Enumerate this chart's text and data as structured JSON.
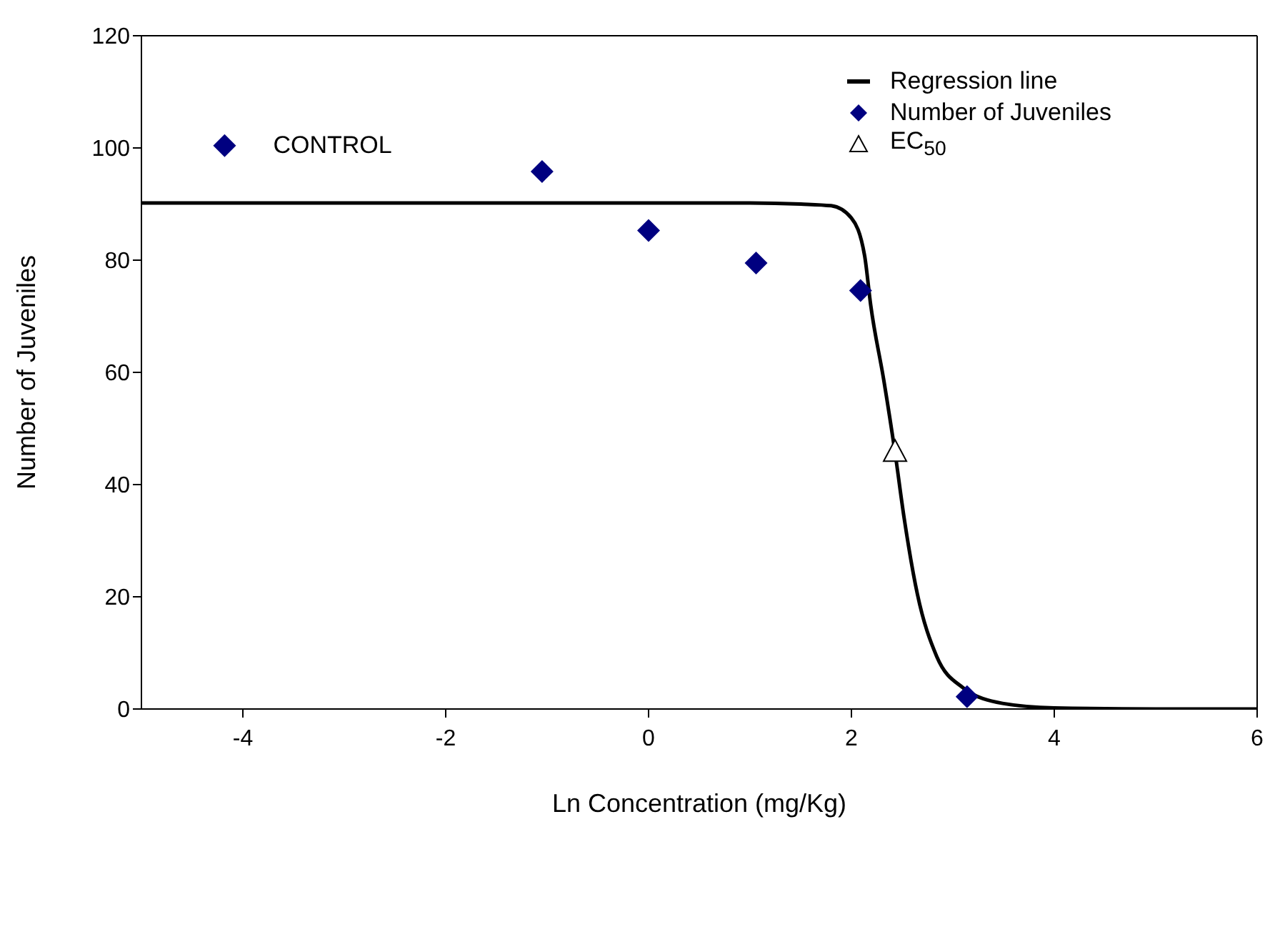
{
  "chart_data": {
    "type": "scatter",
    "xlabel": "Ln Concentration (mg/Kg)",
    "ylabel": "Number of Juveniles",
    "xlim": [
      -5,
      6
    ],
    "xticks": [
      -4,
      -2,
      0,
      2,
      4,
      6
    ],
    "ylim": [
      0,
      120
    ],
    "yticks": [
      0,
      20,
      40,
      60,
      80,
      100,
      120
    ],
    "grid": false,
    "legend": "top right",
    "series": [
      {
        "name": "Regression line",
        "type": "line",
        "color": "#000000",
        "marker": "none",
        "x": [
          -5,
          -2,
          0,
          1,
          1.5,
          1.8,
          2,
          2.13,
          2.19,
          2.32,
          2.43,
          2.52,
          2.65,
          2.84,
          3.1,
          3.49,
          4,
          5,
          6
        ],
        "values": [
          90.2,
          90.2,
          90.2,
          90.2,
          90,
          89.7,
          87.5,
          80.8,
          72,
          58.5,
          45.7,
          34,
          20.5,
          9.4,
          3.8,
          1,
          0.2,
          0,
          0
        ]
      },
      {
        "name": "Number of Juveniles",
        "color": "#000080",
        "marker": "diamond",
        "x": [
          -4.18,
          -1.05,
          0,
          1.06,
          2.09,
          3.14
        ],
        "values": [
          100.4,
          95.8,
          85.3,
          79.5,
          74.6,
          2.2
        ]
      },
      {
        "name": "EC$_{50}$",
        "color": "#000000",
        "marker": "triangle",
        "x": [
          2.43
        ],
        "values": [
          45.7
        ]
      }
    ],
    "annotations": [
      {
        "text": "CONTROL",
        "x": -4.18,
        "y": 100.4
      }
    ]
  }
}
